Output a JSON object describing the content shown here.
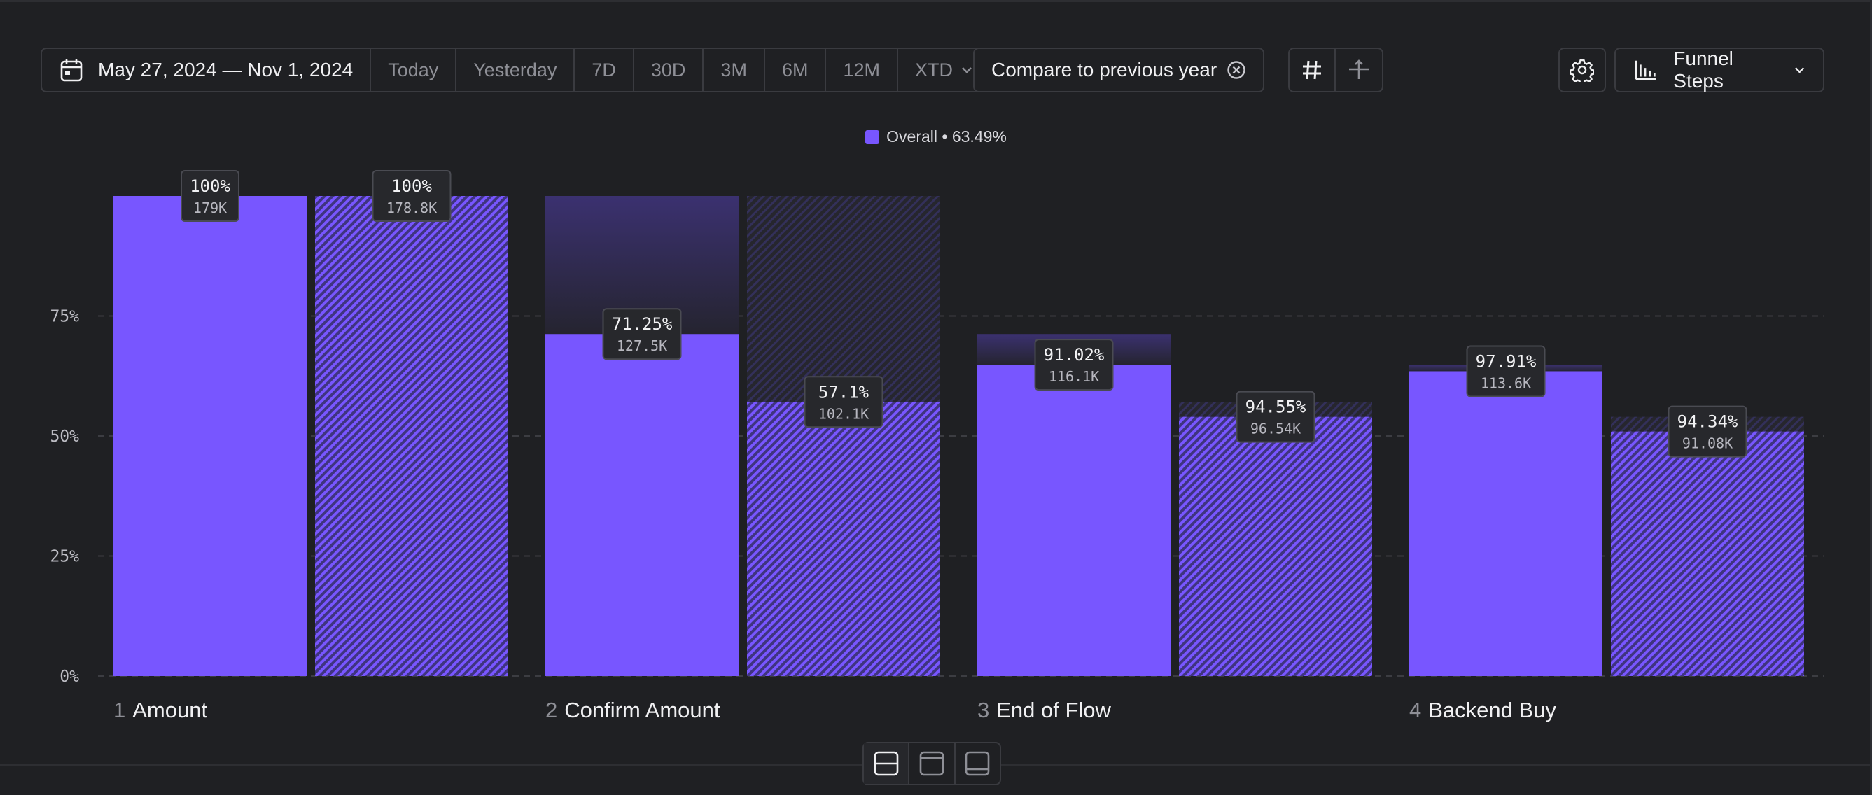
{
  "toolbar": {
    "date_range": "May 27, 2024 — Nov 1, 2024",
    "presets": [
      "Today",
      "Yesterday",
      "7D",
      "30D",
      "3M",
      "6M",
      "12M"
    ],
    "xtd_label": "XTD",
    "compare_label": "Compare to previous year",
    "view_label": "Funnel Steps",
    "icons": [
      "calendar-icon",
      "chevron-down-icon",
      "close-circle-icon",
      "hash-icon",
      "plus-minus-icon",
      "gear-icon",
      "bar-chart-icon",
      "chevron-down-icon"
    ]
  },
  "legend": {
    "label": "Overall • 63.49%",
    "color": "#7856ff"
  },
  "chart_data": {
    "type": "bar",
    "ylim": [
      0,
      100
    ],
    "yticks": [
      0,
      25,
      50,
      75
    ],
    "ytick_labels": [
      "0%",
      "25%",
      "50%",
      "75%"
    ],
    "grid": true,
    "legend_position": "top-center",
    "steps": [
      {
        "number": "1",
        "name": "Amount",
        "current": {
          "value": 100,
          "pct_label": "100%",
          "count_label": "179K"
        },
        "previous": {
          "value": 100,
          "pct_label": "100%",
          "count_label": "178.8K"
        }
      },
      {
        "number": "2",
        "name": "Confirm Amount",
        "current": {
          "value": 71.25,
          "pct_label": "71.25%",
          "count_label": "127.5K"
        },
        "previous": {
          "value": 57.1,
          "pct_label": "57.1%",
          "count_label": "102.1K"
        }
      },
      {
        "number": "3",
        "name": "End of Flow",
        "current": {
          "value": 64.85,
          "pct_label": "91.02%",
          "count_label": "116.1K"
        },
        "previous": {
          "value": 53.99,
          "pct_label": "94.55%",
          "count_label": "96.54K"
        }
      },
      {
        "number": "4",
        "name": "Backend Buy",
        "current": {
          "value": 63.49,
          "pct_label": "97.91%",
          "count_label": "113.6K"
        },
        "previous": {
          "value": 50.93,
          "pct_label": "94.34%",
          "count_label": "91.08K"
        }
      }
    ],
    "colors": {
      "bar": "#7856ff",
      "dropoff": "#3a2f66",
      "label_bg": "#27282c",
      "grid": "#3c3d42"
    }
  }
}
